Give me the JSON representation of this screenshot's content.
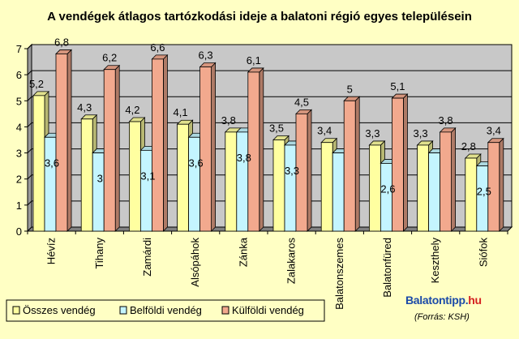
{
  "chart_data": {
    "type": "bar",
    "title": "A vendégek átlagos tartózkodási ideje a balatoni régió egyes településein",
    "categories": [
      "Hévíz",
      "Tihany",
      "Zamárdi",
      "Alsópáhok",
      "Zánka",
      "Zalakaros",
      "Balatonszemes",
      "Balatonfüred",
      "Keszthely",
      "Siófok"
    ],
    "series": [
      {
        "name": "Összes vendég",
        "color": "#ffffa0",
        "values": [
          5.2,
          4.3,
          4.2,
          4.1,
          3.8,
          3.5,
          3.4,
          3.3,
          3.3,
          2.8
        ],
        "labels": [
          "5,2",
          "4,3",
          "4,2",
          "4,1",
          "3,8",
          "3,5",
          "3,4",
          "3,3",
          "3,3",
          "2,8"
        ]
      },
      {
        "name": "Belföldi vendég",
        "color": "#c4f5ff",
        "values": [
          3.6,
          3,
          3.1,
          3.6,
          3.8,
          3.3,
          3,
          2.6,
          3,
          2.5
        ],
        "labels": [
          "3,6",
          "3",
          "3,1",
          "3,6",
          "3,8",
          "3,3",
          "",
          "2,6",
          "",
          "2,5"
        ]
      },
      {
        "name": "Külföldi vendég",
        "color": "#f2a98e",
        "values": [
          6.8,
          6.2,
          6.6,
          6.3,
          6.1,
          4.5,
          5,
          5.1,
          3.8,
          3.4
        ],
        "labels": [
          "6,8",
          "6,2",
          "6,6",
          "6,3",
          "6,1",
          "4,5",
          "5",
          "5,1",
          "3,8",
          "3,4"
        ]
      }
    ],
    "yticks": [
      "0",
      "1",
      "2",
      "3",
      "4",
      "5",
      "6",
      "7"
    ],
    "ylim": [
      0,
      7
    ],
    "grid": true,
    "legend_position": "bottom-left"
  },
  "brand": {
    "main": "Balatontipp.",
    "suffix": "hu"
  },
  "source": "(Forrás: KSH)"
}
